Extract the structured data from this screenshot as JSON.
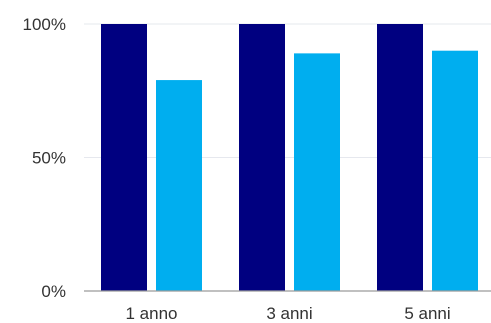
{
  "chart_data": {
    "type": "bar",
    "title": "",
    "xlabel": "",
    "ylabel": "",
    "categories": [
      "1 anno",
      "3 anni",
      "5 anni"
    ],
    "series": [
      {
        "color": "#000080",
        "values": [
          100,
          100,
          100
        ]
      },
      {
        "color": "#00aeef",
        "values": [
          79,
          89,
          90
        ]
      }
    ],
    "ylim": [
      0,
      100
    ],
    "yticks": [
      0,
      50,
      100
    ],
    "ytick_labels": [
      "0%",
      "50%",
      "100%"
    ],
    "grid": true,
    "legend": "none"
  }
}
